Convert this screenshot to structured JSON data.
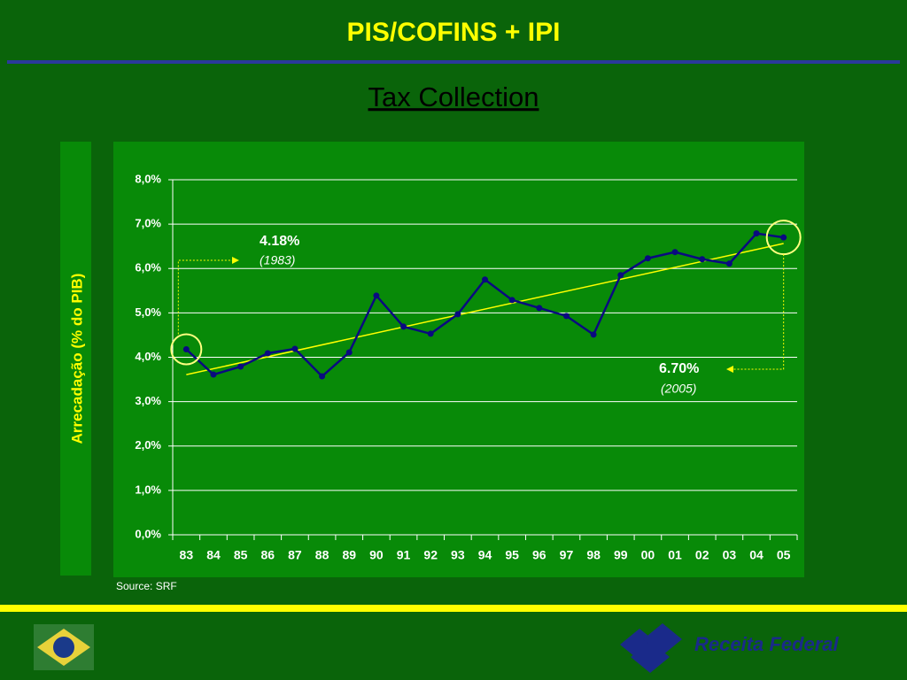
{
  "chart_data": {
    "type": "line",
    "title": "PIS/COFINS + IPI",
    "subtitle": "Tax Collection",
    "y_label": "Arrecadação  (% do PIB)",
    "source": "Source: SRF",
    "brand": "Receita Federal",
    "categories": [
      "83",
      "84",
      "85",
      "86",
      "87",
      "88",
      "89",
      "90",
      "91",
      "92",
      "93",
      "94",
      "95",
      "96",
      "97",
      "98",
      "99",
      "00",
      "01",
      "02",
      "03",
      "04",
      "05"
    ],
    "series": [
      {
        "name": "Arrecadação",
        "color": "#0a0a80",
        "values": [
          4.18,
          3.61,
          3.79,
          4.09,
          4.19,
          3.57,
          4.11,
          5.39,
          4.69,
          4.53,
          4.97,
          5.75,
          5.29,
          5.11,
          4.93,
          4.51,
          5.85,
          6.23,
          6.37,
          6.21,
          6.11,
          6.79,
          6.7
        ]
      }
    ],
    "ylim": [
      0,
      8
    ],
    "yticks": [
      {
        "value": 0,
        "label": "0,0%"
      },
      {
        "value": 1,
        "label": "1,0%"
      },
      {
        "value": 2,
        "label": "2,0%"
      },
      {
        "value": 3,
        "label": "3,0%"
      },
      {
        "value": 4,
        "label": "4,0%"
      },
      {
        "value": 5,
        "label": "5,0%"
      },
      {
        "value": 6,
        "label": "6,0%"
      },
      {
        "value": 7,
        "label": "7,0%"
      },
      {
        "value": 8,
        "label": "8,0%"
      }
    ],
    "grid": true,
    "trendline": true,
    "annotations": [
      {
        "text": "4.18%",
        "note": "(1983)"
      },
      {
        "text": "6.70%",
        "note": "(2005)"
      }
    ]
  }
}
